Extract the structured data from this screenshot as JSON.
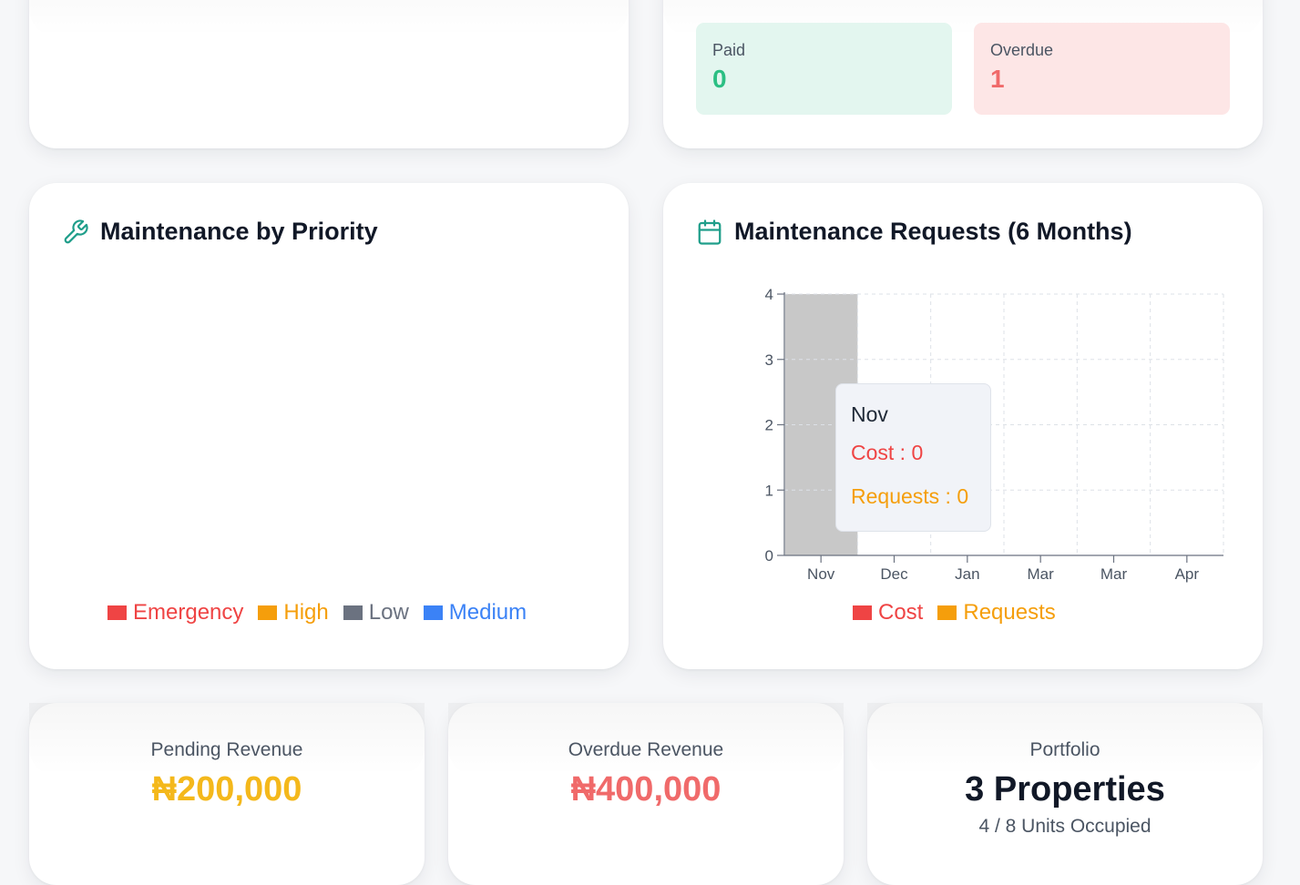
{
  "status_summary": {
    "paid": {
      "label": "Paid",
      "value": "0",
      "color": "#2bbf83"
    },
    "overdue": {
      "label": "Overdue",
      "value": "1",
      "color": "#f06a6a"
    }
  },
  "priority_card": {
    "title": "Maintenance by Priority",
    "icon": "wrench-icon",
    "legend": [
      {
        "label": "Emergency",
        "color": "#ef4444"
      },
      {
        "label": "High",
        "color": "#f59e0b"
      },
      {
        "label": "Low",
        "color": "#6b7280"
      },
      {
        "label": "Medium",
        "color": "#3b82f6"
      }
    ]
  },
  "requests_card": {
    "title": "Maintenance Requests (6 Months)",
    "icon": "calendar-icon",
    "tooltip": {
      "title": "Nov",
      "cost": "Cost : 0",
      "requests": "Requests : 0"
    }
  },
  "chart_data": {
    "type": "bar",
    "categories": [
      "Nov",
      "Dec",
      "Jan",
      "Mar",
      "Mar",
      "Apr"
    ],
    "series": [
      {
        "name": "Cost",
        "values": [
          0,
          0,
          0,
          0,
          0,
          0
        ],
        "color": "#ef4444"
      },
      {
        "name": "Requests",
        "values": [
          0,
          0,
          0,
          0,
          0,
          0
        ],
        "color": "#f59e0b"
      }
    ],
    "y_ticks": [
      "0",
      "1",
      "2",
      "3",
      "4"
    ],
    "ylim": [
      0,
      4
    ],
    "grid": true,
    "legend_position": "bottom",
    "hover_category": "Nov",
    "hover_color": "#c8c8c8"
  },
  "stats": {
    "pending": {
      "label": "Pending Revenue",
      "value": "₦200,000",
      "color": "#f4b81b"
    },
    "overdue": {
      "label": "Overdue Revenue",
      "value": "₦400,000",
      "color": "#f06a6a"
    },
    "portfolio": {
      "label": "Portfolio",
      "value": "3 Properties",
      "sub": "4 / 8 Units Occupied",
      "color": "#111827"
    }
  }
}
